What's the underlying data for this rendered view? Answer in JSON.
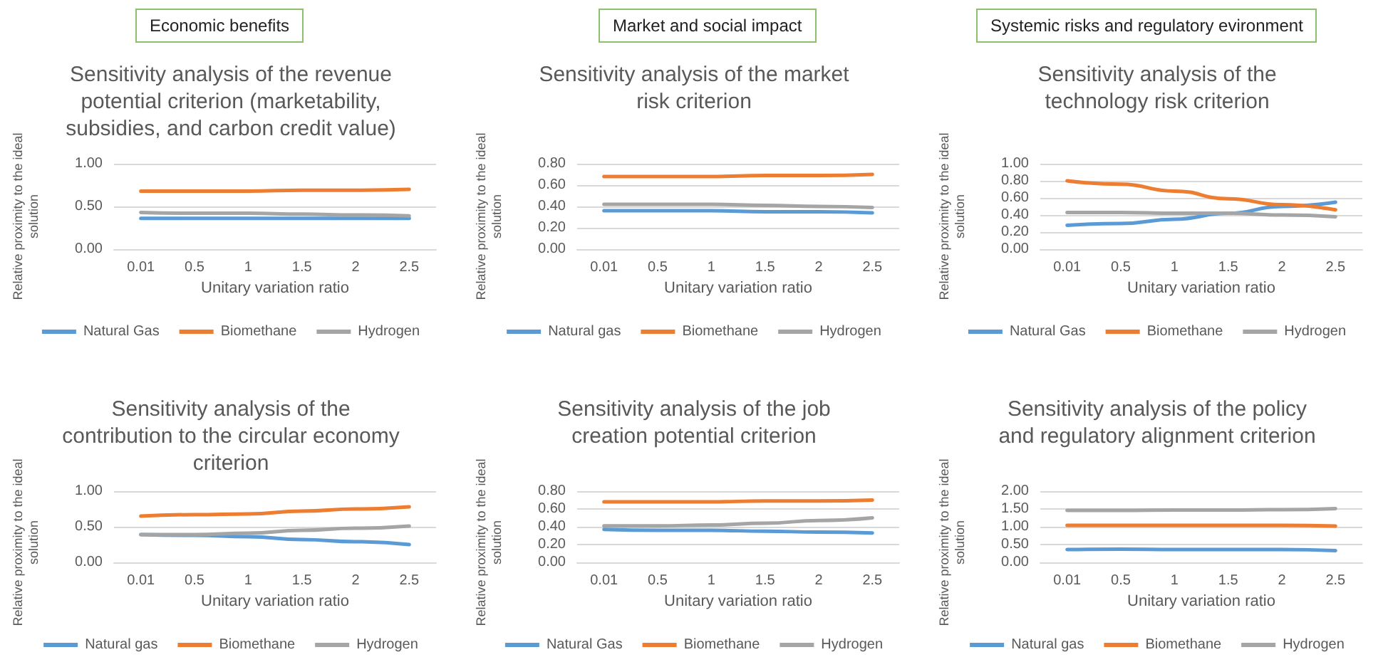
{
  "chart_data": [
    {
      "type": "line",
      "annotations": [
        "Economic benefits"
      ],
      "title": "Sensitivity analysis of the revenue potential criterion (marketability, subsidies, and carbon credit value)",
      "xlabel": "Unitary variation ratio",
      "ylabel": "Relative proximity to the ideal solution",
      "categories": [
        "0.01",
        "0.5",
        "1",
        "1.5",
        "2",
        "2.5"
      ],
      "ylim": [
        0,
        1
      ],
      "yticks": [
        {
          "value": 0,
          "label": "0.00"
        },
        {
          "value": 0.5,
          "label": "0.50"
        },
        {
          "value": 1,
          "label": "1.00"
        }
      ],
      "grid": "y",
      "legend": "bottom",
      "marker": "none",
      "line_style": "solid",
      "series": [
        {
          "name": "Natural Gas",
          "color": "#5b9bd5",
          "values": [
            0.36,
            0.36,
            0.36,
            0.36,
            0.36,
            0.36
          ]
        },
        {
          "name": "Biomethane",
          "color": "#ed7d31",
          "values": [
            0.68,
            0.68,
            0.68,
            0.69,
            0.69,
            0.7
          ]
        },
        {
          "name": "Hydrogen",
          "color": "#a5a5a5",
          "values": [
            0.43,
            0.42,
            0.42,
            0.41,
            0.4,
            0.39
          ]
        }
      ]
    },
    {
      "type": "line",
      "annotations": [
        "Market and social impact"
      ],
      "title": "Sensitivity analysis of the market risk criterion",
      "xlabel": "Unitary variation ratio",
      "ylabel": "Relative proximity to the ideal solution",
      "categories": [
        "0.01",
        "0.5",
        "1",
        "1.5",
        "2",
        "2.5"
      ],
      "ylim": [
        0,
        0.8
      ],
      "yticks": [
        {
          "value": 0,
          "label": "0.00"
        },
        {
          "value": 0.2,
          "label": "0.20"
        },
        {
          "value": 0.4,
          "label": "0.40"
        },
        {
          "value": 0.6,
          "label": "0.60"
        },
        {
          "value": 0.8,
          "label": "0.80"
        }
      ],
      "grid": "y",
      "legend": "bottom",
      "marker": "none",
      "line_style": "solid",
      "series": [
        {
          "name": "Natural gas",
          "color": "#5b9bd5",
          "values": [
            0.36,
            0.36,
            0.36,
            0.35,
            0.35,
            0.34
          ]
        },
        {
          "name": "Biomethane",
          "color": "#ed7d31",
          "values": [
            0.68,
            0.68,
            0.68,
            0.69,
            0.69,
            0.7
          ]
        },
        {
          "name": "Hydrogen",
          "color": "#a5a5a5",
          "values": [
            0.42,
            0.42,
            0.42,
            0.41,
            0.4,
            0.39
          ]
        }
      ]
    },
    {
      "type": "line",
      "annotations": [
        "Systemic risks and regulatory evironment"
      ],
      "title": "Sensitivity analysis of the technology risk criterion",
      "xlabel": "Unitary variation ratio",
      "ylabel": "Relative proximity to the ideal solution",
      "categories": [
        "0.01",
        "0.5",
        "1",
        "1.5",
        "2",
        "2.5"
      ],
      "ylim": [
        0,
        1
      ],
      "yticks": [
        {
          "value": 0,
          "label": "0.00"
        },
        {
          "value": 0.2,
          "label": "0.20"
        },
        {
          "value": 0.4,
          "label": "0.40"
        },
        {
          "value": 0.6,
          "label": "0.60"
        },
        {
          "value": 0.8,
          "label": "0.80"
        },
        {
          "value": 1,
          "label": "1.00"
        }
      ],
      "grid": "y",
      "legend": "bottom",
      "marker": "none",
      "line_style": "solid",
      "series": [
        {
          "name": "Natural Gas",
          "color": "#5b9bd5",
          "values": [
            0.28,
            0.3,
            0.35,
            0.42,
            0.5,
            0.55
          ]
        },
        {
          "name": "Biomethane",
          "color": "#ed7d31",
          "values": [
            0.8,
            0.76,
            0.68,
            0.59,
            0.52,
            0.46
          ]
        },
        {
          "name": "Hydrogen",
          "color": "#a5a5a5",
          "values": [
            0.43,
            0.43,
            0.42,
            0.42,
            0.4,
            0.38
          ]
        }
      ]
    },
    {
      "type": "line",
      "title": "Sensitivity analysis of the contribution to the circular economy criterion",
      "xlabel": "Unitary variation ratio",
      "ylabel": "Relative proximity to the ideal solution",
      "categories": [
        "0.01",
        "0.5",
        "1",
        "1.5",
        "2",
        "2.5"
      ],
      "ylim": [
        0,
        1
      ],
      "yticks": [
        {
          "value": 0,
          "label": "0.00"
        },
        {
          "value": 0.5,
          "label": "0.50"
        },
        {
          "value": 1,
          "label": "1.00"
        }
      ],
      "grid": "y",
      "legend": "bottom",
      "marker": "none",
      "line_style": "solid",
      "series": [
        {
          "name": "Natural gas",
          "color": "#5b9bd5",
          "values": [
            0.39,
            0.38,
            0.36,
            0.32,
            0.29,
            0.25
          ]
        },
        {
          "name": "Biomethane",
          "color": "#ed7d31",
          "values": [
            0.65,
            0.67,
            0.68,
            0.72,
            0.75,
            0.78
          ]
        },
        {
          "name": "Hydrogen",
          "color": "#a5a5a5",
          "values": [
            0.39,
            0.39,
            0.41,
            0.45,
            0.48,
            0.51
          ]
        }
      ]
    },
    {
      "type": "line",
      "title": "Sensitivity analysis of the job creation potential criterion",
      "xlabel": "Unitary variation ratio",
      "ylabel": "Relative proximity to the ideal solution",
      "categories": [
        "0.01",
        "0.5",
        "1",
        "1.5",
        "2",
        "2.5"
      ],
      "ylim": [
        0,
        0.8
      ],
      "yticks": [
        {
          "value": 0,
          "label": "0.00"
        },
        {
          "value": 0.2,
          "label": "0.20"
        },
        {
          "value": 0.4,
          "label": "0.40"
        },
        {
          "value": 0.6,
          "label": "0.60"
        },
        {
          "value": 0.8,
          "label": "0.80"
        }
      ],
      "grid": "y",
      "legend": "bottom",
      "marker": "none",
      "line_style": "solid",
      "series": [
        {
          "name": "Natural Gas",
          "color": "#5b9bd5",
          "values": [
            0.37,
            0.36,
            0.36,
            0.35,
            0.34,
            0.33
          ]
        },
        {
          "name": "Biomethane",
          "color": "#ed7d31",
          "values": [
            0.68,
            0.68,
            0.68,
            0.69,
            0.69,
            0.7
          ]
        },
        {
          "name": "Hydrogen",
          "color": "#a5a5a5",
          "values": [
            0.41,
            0.41,
            0.42,
            0.44,
            0.47,
            0.5
          ]
        }
      ]
    },
    {
      "type": "line",
      "title": "Sensitivity analysis of the policy and regulatory alignment criterion",
      "xlabel": "Unitary variation ratio",
      "ylabel": "Relative proximity to the ideal solution",
      "categories": [
        "0.01",
        "0.5",
        "1",
        "1.5",
        "2",
        "2.5"
      ],
      "ylim": [
        0,
        2
      ],
      "yticks": [
        {
          "value": 0,
          "label": "0.00"
        },
        {
          "value": 0.5,
          "label": "0.50"
        },
        {
          "value": 1,
          "label": "1.00"
        },
        {
          "value": 1.5,
          "label": "1.50"
        },
        {
          "value": 2,
          "label": "2.00"
        }
      ],
      "grid": "y",
      "legend": "bottom",
      "marker": "none",
      "line_style": "solid",
      "series": [
        {
          "name": "Natural gas",
          "color": "#5b9bd5",
          "values": [
            0.36,
            0.37,
            0.36,
            0.36,
            0.36,
            0.33
          ]
        },
        {
          "name": "Biomethane",
          "color": "#ed7d31",
          "values": [
            1.04,
            1.04,
            1.04,
            1.04,
            1.04,
            1.02
          ]
        },
        {
          "name": "Hydrogen",
          "color": "#a5a5a5",
          "values": [
            1.46,
            1.46,
            1.47,
            1.47,
            1.48,
            1.51
          ]
        }
      ]
    }
  ]
}
